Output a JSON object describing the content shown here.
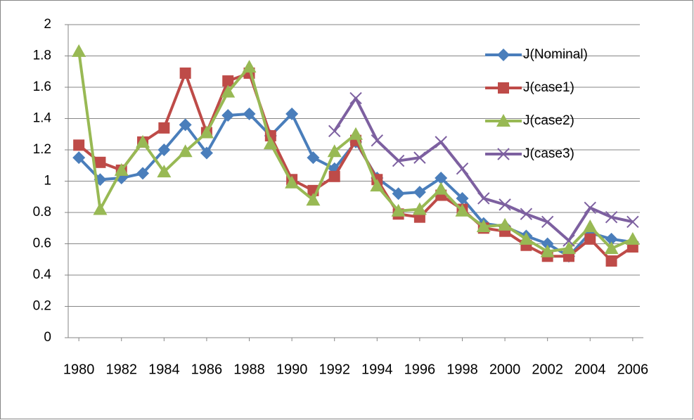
{
  "chart_data": {
    "type": "line",
    "x": [
      1980,
      1981,
      1982,
      1983,
      1984,
      1985,
      1986,
      1987,
      1988,
      1989,
      1990,
      1991,
      1992,
      1993,
      1994,
      1995,
      1996,
      1997,
      1998,
      1999,
      2000,
      2001,
      2002,
      2003,
      2004,
      2005,
      2006
    ],
    "xlim": [
      1979.5,
      2006.5
    ],
    "xticks": [
      1980,
      1982,
      1984,
      1986,
      1988,
      1990,
      1992,
      1994,
      1996,
      1998,
      2000,
      2002,
      2004,
      2006
    ],
    "ylim": [
      0,
      2
    ],
    "yticks": [
      0,
      0.2,
      0.4,
      0.6,
      0.8,
      1,
      1.2,
      1.4,
      1.6,
      1.8,
      2
    ],
    "grid": true,
    "legend": "upper right",
    "series": [
      {
        "name": "J(Nominal)",
        "color": "#4a7ebb",
        "marker": "diamond",
        "values": [
          1.15,
          1.01,
          1.02,
          1.05,
          1.2,
          1.36,
          1.18,
          1.42,
          1.43,
          1.29,
          1.43,
          1.15,
          1.08,
          1.25,
          1.02,
          0.92,
          0.93,
          1.02,
          0.89,
          0.73,
          0.71,
          0.65,
          0.6,
          0.52,
          0.67,
          0.63,
          0.61
        ]
      },
      {
        "name": "J(case1)",
        "color": "#be4b48",
        "marker": "square",
        "values": [
          1.23,
          1.12,
          1.07,
          1.25,
          1.34,
          1.69,
          1.31,
          1.64,
          1.69,
          1.29,
          1.01,
          0.94,
          1.03,
          1.26,
          1.01,
          0.79,
          0.77,
          0.91,
          0.82,
          0.7,
          0.68,
          0.59,
          0.52,
          0.52,
          0.63,
          0.49,
          0.58
        ]
      },
      {
        "name": "J(case2)",
        "color": "#98b954",
        "marker": "triangle",
        "values": [
          1.83,
          0.82,
          1.07,
          1.25,
          1.06,
          1.19,
          1.31,
          1.57,
          1.73,
          1.24,
          0.99,
          0.88,
          1.19,
          1.3,
          0.97,
          0.81,
          0.82,
          0.95,
          0.81,
          0.71,
          0.72,
          0.63,
          0.55,
          0.57,
          0.71,
          0.57,
          0.63
        ]
      },
      {
        "name": "J(case3)",
        "color": "#7d60a0",
        "marker": "x",
        "values": [
          null,
          null,
          null,
          null,
          null,
          null,
          null,
          null,
          null,
          null,
          null,
          null,
          1.32,
          1.53,
          1.26,
          1.13,
          1.15,
          1.25,
          1.08,
          0.89,
          0.85,
          0.79,
          0.74,
          0.62,
          0.83,
          0.77,
          0.74
        ]
      }
    ]
  }
}
